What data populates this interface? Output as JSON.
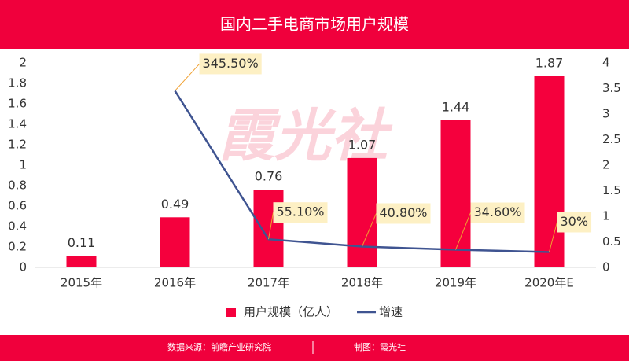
{
  "chart_data": {
    "type": "bar",
    "title": "国内二手电商市场用户规模",
    "watermark": "霞光社",
    "categories": [
      "2015年",
      "2016年",
      "2017年",
      "2018年",
      "2019年",
      "2020年E"
    ],
    "series": [
      {
        "name": "用户规模（亿人）",
        "type": "bar",
        "color": "#f5003d",
        "values": [
          0.11,
          0.49,
          0.76,
          1.07,
          1.44,
          1.87
        ]
      },
      {
        "name": "增速",
        "type": "line",
        "axis": "y2",
        "color": "#3f5491",
        "values": [
          null,
          3.455,
          0.551,
          0.408,
          0.346,
          0.3
        ],
        "value_labels": [
          null,
          "345.50%",
          "55.10%",
          "40.80%",
          "34.60%",
          "30%"
        ]
      }
    ],
    "ylim": [
      0,
      2
    ],
    "yticks": [
      0,
      0.2,
      0.4,
      0.6,
      0.8,
      1,
      1.2,
      1.4,
      1.6,
      1.8,
      2
    ],
    "y2lim": [
      0,
      4
    ],
    "y2ticks": [
      0,
      0.5,
      1,
      1.5,
      2,
      2.5,
      3,
      3.5,
      4
    ],
    "legend": "bottom",
    "source": "数据来源：前瞻产业研究院",
    "credit": "制图：霞光社"
  }
}
